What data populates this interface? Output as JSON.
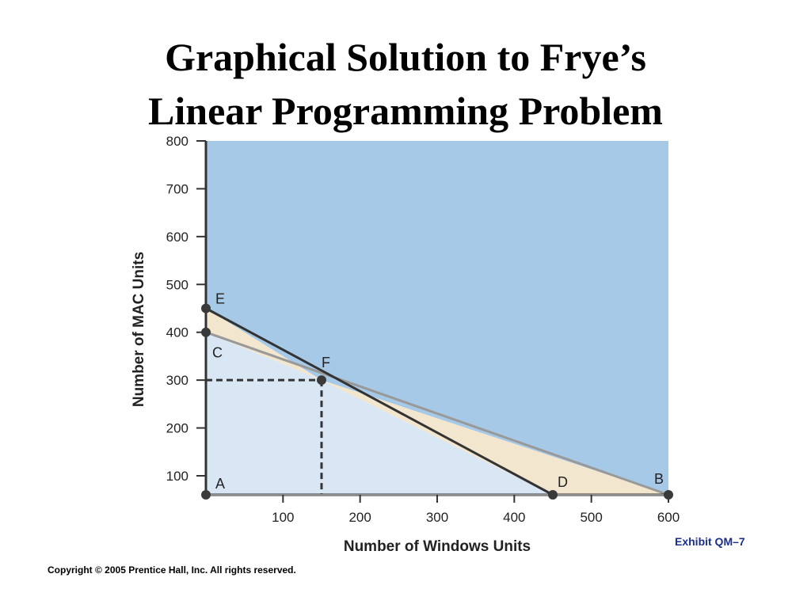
{
  "slide": {
    "title_line1": "Graphical Solution to Frye’s",
    "title_line2": "Linear Programming Problem",
    "exhibit": "Exhibit QM–7",
    "copyright": "Copyright © 2005 Prentice Hall, Inc. All rights reserved."
  },
  "colors": {
    "upper_region": "#a7c9e8",
    "lower_region": "#d9e7f5",
    "between_region": "#f3e6cf",
    "axis": "#333333",
    "constraint_gray": "#999999",
    "constraint_dark": "#333333"
  },
  "chart_data": {
    "type": "line",
    "title": "",
    "xlabel": "Number of Windows Units",
    "ylabel": "Number of MAC Units",
    "xlim": [
      0,
      600
    ],
    "ylim": [
      0,
      800
    ],
    "x_ticks": [
      100,
      200,
      300,
      400,
      500,
      600
    ],
    "y_ticks": [
      100,
      200,
      300,
      400,
      500,
      600,
      700,
      800
    ],
    "grid": false,
    "series": [
      {
        "x": [
          0,
          600
        ],
        "y": [
          400,
          0
        ],
        "style": "gray"
      },
      {
        "x": [
          0,
          450
        ],
        "y": [
          450,
          0
        ],
        "style": "dark"
      }
    ],
    "points": [
      {
        "label": "A",
        "x": 0,
        "y": 0
      },
      {
        "label": "B",
        "x": 600,
        "y": 0
      },
      {
        "label": "C",
        "x": 0,
        "y": 400
      },
      {
        "label": "D",
        "x": 450,
        "y": 0
      },
      {
        "label": "E",
        "x": 0,
        "y": 450
      },
      {
        "label": "F",
        "x": 150,
        "y": 300
      }
    ],
    "guide_point": {
      "x": 150,
      "y": 300
    }
  }
}
